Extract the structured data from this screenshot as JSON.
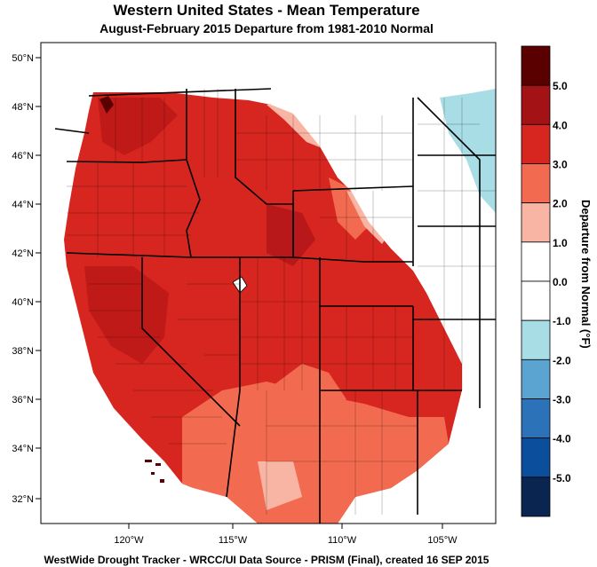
{
  "header": {
    "title": "Western United States - Mean Temperature",
    "subtitle": "August-February 2015  Departure from 1981-2010 Normal"
  },
  "footer": {
    "credit": "WestWide Drought Tracker - WRCC/UI  Data Source - PRISM (Final), created 16 SEP 2015"
  },
  "axes": {
    "latitude_ticks": [
      "50°N",
      "48°N",
      "46°N",
      "44°N",
      "42°N",
      "40°N",
      "38°N",
      "36°N",
      "34°N",
      "32°N"
    ],
    "longitude_ticks": [
      "120°W",
      "115°W",
      "110°W",
      "105°W"
    ]
  },
  "colorbar": {
    "title": "Departure from Normal (°F)",
    "labels": [
      "5.0",
      "4.0",
      "3.0",
      "2.0",
      "1.0",
      "0.0",
      "-1.0",
      "-2.0",
      "-3.0",
      "-4.0",
      "-5.0"
    ],
    "colors": [
      "#5a0000",
      "#a31214",
      "#d7261f",
      "#f26a4f",
      "#f9b5a4",
      "#ffffff",
      "#ffffff",
      "#a8dde6",
      "#5ba4d2",
      "#2b72b8",
      "#0b4e9c",
      "#0a2550"
    ]
  },
  "map_colors": {
    "strong_warm": "#c5201b",
    "warm": "#d7261f",
    "moderate": "#f26a4f",
    "light": "#f9b5a4",
    "neutral": "#ffffff",
    "cool": "#a8dde6"
  }
}
